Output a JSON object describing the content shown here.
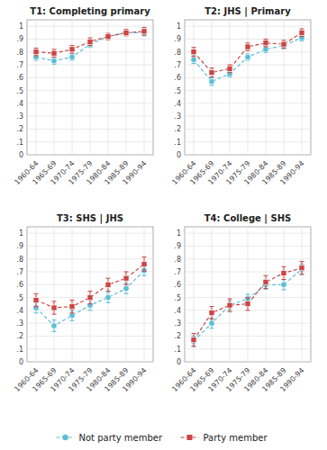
{
  "chart_data": [
    {
      "type": "line",
      "title": "T1: Completing primary",
      "categories": [
        "1960-64",
        "1965-69",
        "1970-74",
        "1975-79",
        "1980-84",
        "1985-89",
        "1990-94"
      ],
      "series": [
        {
          "name": "Not party member",
          "color": "#5abed4",
          "marker": "circle",
          "line_style": "dashed",
          "values": [
            0.76,
            0.73,
            0.76,
            0.86,
            0.92,
            0.95,
            0.95
          ],
          "errors": [
            0.025,
            0.025,
            0.025,
            0.025,
            0.02,
            0.02,
            0.025
          ]
        },
        {
          "name": "Party member",
          "color": "#cc4444",
          "marker": "square",
          "line_style": "dashed",
          "values": [
            0.8,
            0.79,
            0.82,
            0.88,
            0.92,
            0.95,
            0.96
          ],
          "errors": [
            0.03,
            0.03,
            0.03,
            0.03,
            0.025,
            0.025,
            0.03
          ]
        }
      ],
      "ylim": [
        0,
        1.05
      ],
      "yticks": [
        0,
        {
          "value": 0.1,
          "label": ".1"
        },
        {
          "value": 0.2,
          "label": ".2"
        },
        {
          "value": 0.3,
          "label": ".3"
        },
        {
          "value": 0.4,
          "label": ".4"
        },
        {
          "value": 0.5,
          "label": ".5"
        },
        {
          "value": 0.6,
          "label": ".6"
        },
        {
          "value": 0.7,
          "label": ".7"
        },
        {
          "value": 0.8,
          "label": ".8"
        },
        {
          "value": 0.9,
          "label": ".9"
        },
        1
      ],
      "grid": true,
      "legend": "bottom"
    },
    {
      "type": "line",
      "title": "T2: JHS | Primary",
      "categories": [
        "1960-64",
        "1965-69",
        "1970-74",
        "1975-79",
        "1980-84",
        "1985-89",
        "1990-94"
      ],
      "series": [
        {
          "name": "Not party member",
          "color": "#5abed4",
          "marker": "circle",
          "line_style": "dashed",
          "values": [
            0.74,
            0.57,
            0.63,
            0.76,
            0.82,
            0.85,
            0.91
          ],
          "errors": [
            0.03,
            0.03,
            0.025,
            0.025,
            0.025,
            0.025,
            0.025
          ]
        },
        {
          "name": "Party member",
          "color": "#cc4444",
          "marker": "square",
          "line_style": "dashed",
          "values": [
            0.8,
            0.64,
            0.67,
            0.84,
            0.87,
            0.86,
            0.95
          ],
          "errors": [
            0.035,
            0.035,
            0.03,
            0.03,
            0.03,
            0.03,
            0.03
          ]
        }
      ],
      "ylim": [
        0,
        1.05
      ],
      "yticks": [
        0,
        {
          "value": 0.1,
          "label": ".1"
        },
        {
          "value": 0.2,
          "label": ".2"
        },
        {
          "value": 0.3,
          "label": ".3"
        },
        {
          "value": 0.4,
          "label": ".4"
        },
        {
          "value": 0.5,
          "label": ".5"
        },
        {
          "value": 0.6,
          "label": ".6"
        },
        {
          "value": 0.7,
          "label": ".7"
        },
        {
          "value": 0.8,
          "label": ".8"
        },
        {
          "value": 0.9,
          "label": ".9"
        },
        1
      ],
      "grid": true
    },
    {
      "type": "line",
      "title": "T3: SHS | JHS",
      "categories": [
        "1960-64",
        "1965-69",
        "1970-74",
        "1975-79",
        "1980-84",
        "1985-89",
        "1990-94"
      ],
      "series": [
        {
          "name": "Not party member",
          "color": "#5abed4",
          "marker": "circle",
          "line_style": "dashed",
          "values": [
            0.42,
            0.28,
            0.36,
            0.44,
            0.5,
            0.57,
            0.71
          ],
          "errors": [
            0.04,
            0.045,
            0.04,
            0.04,
            0.04,
            0.04,
            0.04
          ]
        },
        {
          "name": "Party member",
          "color": "#cc4444",
          "marker": "square",
          "line_style": "dashed",
          "values": [
            0.48,
            0.42,
            0.43,
            0.5,
            0.6,
            0.65,
            0.76
          ],
          "errors": [
            0.05,
            0.05,
            0.05,
            0.05,
            0.05,
            0.05,
            0.055
          ]
        }
      ],
      "ylim": [
        0,
        1.05
      ],
      "yticks": [
        0,
        {
          "value": 0.1,
          "label": ".1"
        },
        {
          "value": 0.2,
          "label": ".2"
        },
        {
          "value": 0.3,
          "label": ".3"
        },
        {
          "value": 0.4,
          "label": ".4"
        },
        {
          "value": 0.5,
          "label": ".5"
        },
        {
          "value": 0.6,
          "label": ".6"
        },
        {
          "value": 0.7,
          "label": ".7"
        },
        {
          "value": 0.8,
          "label": ".8"
        },
        {
          "value": 0.9,
          "label": ".9"
        },
        1
      ],
      "grid": true
    },
    {
      "type": "line",
      "title": "T4: College | SHS",
      "categories": [
        "1960-64",
        "1965-69",
        "1970-74",
        "1975-79",
        "1980-84",
        "1985-89",
        "1990-94"
      ],
      "series": [
        {
          "name": "Not party member",
          "color": "#5abed4",
          "marker": "circle",
          "line_style": "dashed",
          "values": [
            0.16,
            0.3,
            0.44,
            0.49,
            0.6,
            0.6,
            0.72
          ],
          "errors": [
            0.04,
            0.04,
            0.035,
            0.035,
            0.035,
            0.04,
            0.04
          ]
        },
        {
          "name": "Party member",
          "color": "#cc4444",
          "marker": "square",
          "line_style": "dashed",
          "values": [
            0.17,
            0.38,
            0.44,
            0.45,
            0.62,
            0.69,
            0.73
          ],
          "errors": [
            0.05,
            0.05,
            0.05,
            0.05,
            0.05,
            0.05,
            0.05
          ]
        }
      ],
      "ylim": [
        0,
        1.05
      ],
      "yticks": [
        0,
        {
          "value": 0.1,
          "label": ".1"
        },
        {
          "value": 0.2,
          "label": ".2"
        },
        {
          "value": 0.3,
          "label": ".3"
        },
        {
          "value": 0.4,
          "label": ".4"
        },
        {
          "value": 0.5,
          "label": ".5"
        },
        {
          "value": 0.6,
          "label": ".6"
        },
        {
          "value": 0.7,
          "label": ".7"
        },
        {
          "value": 0.8,
          "label": ".8"
        },
        {
          "value": 0.9,
          "label": ".9"
        },
        1
      ],
      "grid": true
    }
  ]
}
